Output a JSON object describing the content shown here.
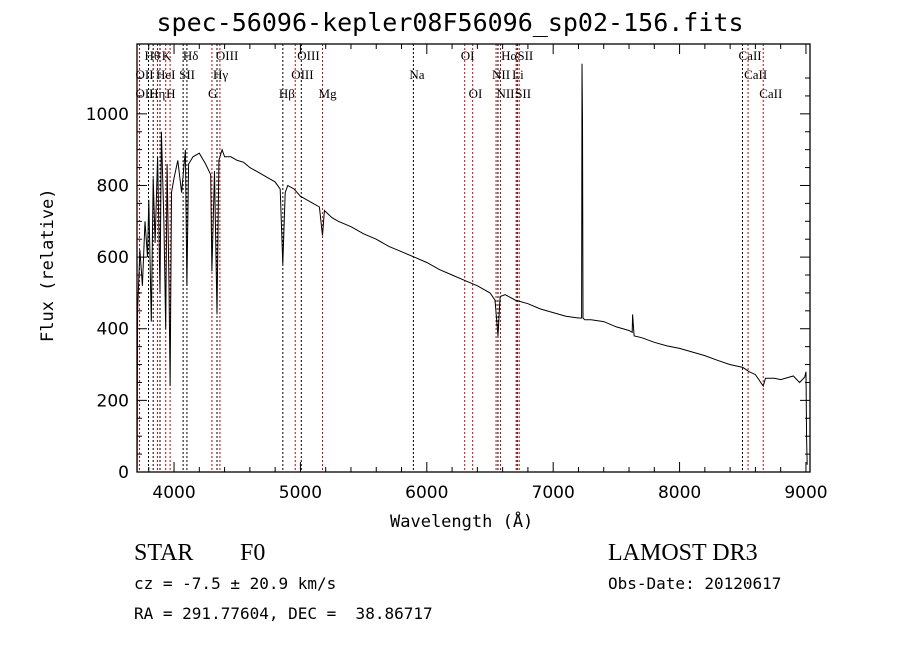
{
  "chart_data": {
    "type": "line",
    "title": "spec-56096-kepler08F56096_sp02-156.fits",
    "xlabel": "Wavelength (Å)",
    "ylabel": "Flux (relative)",
    "xlim": [
      3707,
      9032
    ],
    "ylim": [
      0,
      1195
    ],
    "xticks": [
      4000,
      5000,
      6000,
      7000,
      8000,
      9000
    ],
    "xtick_labels": [
      "4000",
      "5000",
      "6000",
      "7000",
      "8000",
      "9000"
    ],
    "yticks": [
      0,
      200,
      400,
      600,
      800,
      1000
    ],
    "ytick_labels": [
      "0",
      "200",
      "400",
      "600",
      "800",
      "1000"
    ],
    "grid": false,
    "series": [
      {
        "name": "spectrum",
        "color": "#000000",
        "x": [
          3708,
          3712,
          3730,
          3750,
          3770,
          3790,
          3800,
          3820,
          3835,
          3850,
          3870,
          3889,
          3900,
          3920,
          3934,
          3945,
          3960,
          3969,
          3980,
          4000,
          4030,
          4060,
          4090,
          4102,
          4115,
          4150,
          4200,
          4250,
          4290,
          4300,
          4320,
          4340,
          4355,
          4380,
          4400,
          4450,
          4500,
          4550,
          4600,
          4650,
          4700,
          4750,
          4800,
          4840,
          4861,
          4880,
          4900,
          4950,
          5000,
          5050,
          5100,
          5150,
          5175,
          5190,
          5250,
          5300,
          5400,
          5500,
          5600,
          5700,
          5800,
          5900,
          6000,
          6100,
          6200,
          6300,
          6400,
          6500,
          6540,
          6563,
          6580,
          6620,
          6700,
          6800,
          6900,
          7000,
          7100,
          7200,
          7225,
          7228,
          7232,
          7236,
          7250,
          7300,
          7400,
          7500,
          7600,
          7625,
          7628,
          7640,
          7700,
          7800,
          7900,
          8000,
          8100,
          8200,
          8300,
          8400,
          8500,
          8550,
          8600,
          8662,
          8680,
          8750,
          8800,
          8900,
          8950,
          8990,
          9000,
          9005,
          9010
        ],
        "y": [
          0,
          450,
          620,
          520,
          700,
          600,
          760,
          420,
          820,
          640,
          880,
          500,
          950,
          700,
          400,
          860,
          520,
          240,
          780,
          820,
          870,
          780,
          900,
          520,
          860,
          880,
          890,
          860,
          830,
          560,
          840,
          440,
          870,
          900,
          880,
          880,
          870,
          865,
          850,
          840,
          830,
          820,
          810,
          790,
          580,
          780,
          800,
          790,
          770,
          760,
          750,
          740,
          660,
          730,
          710,
          700,
          685,
          665,
          650,
          630,
          615,
          600,
          585,
          565,
          550,
          535,
          520,
          500,
          480,
          380,
          490,
          495,
          480,
          470,
          455,
          445,
          435,
          430,
          430,
          1140,
          980,
          430,
          425,
          425,
          420,
          405,
          395,
          390,
          440,
          380,
          375,
          362,
          352,
          345,
          335,
          325,
          312,
          300,
          292,
          280,
          272,
          240,
          262,
          262,
          258,
          268,
          250,
          265,
          280,
          90,
          20
        ]
      },
      {
        "name": "spectral-lines",
        "lines": [
          {
            "w": 3727,
            "color": "#cc0000"
          },
          {
            "w": 3798,
            "color": "#000000"
          },
          {
            "w": 3835,
            "color": "#000000"
          },
          {
            "w": 3869,
            "color": "#cc0000"
          },
          {
            "w": 3889,
            "color": "#000000"
          },
          {
            "w": 3934,
            "color": "#cc0000"
          },
          {
            "w": 3969,
            "color": "#cc0000"
          },
          {
            "w": 4072,
            "color": "#000000"
          },
          {
            "w": 4102,
            "color": "#000000"
          },
          {
            "w": 4300,
            "color": "#cc0000"
          },
          {
            "w": 4340,
            "color": "#000000"
          },
          {
            "w": 4363,
            "color": "#cc0000"
          },
          {
            "w": 4861,
            "color": "#000000"
          },
          {
            "w": 4959,
            "color": "#cc0000"
          },
          {
            "w": 5007,
            "color": "#000000"
          },
          {
            "w": 5175,
            "color": "#cc0000"
          },
          {
            "w": 5894,
            "color": "#000000"
          },
          {
            "w": 6300,
            "color": "#cc0000"
          },
          {
            "w": 6363,
            "color": "#cc0000"
          },
          {
            "w": 6548,
            "color": "#cc0000"
          },
          {
            "w": 6563,
            "color": "#000000"
          },
          {
            "w": 6583,
            "color": "#cc0000"
          },
          {
            "w": 6707,
            "color": "#cc0000"
          },
          {
            "w": 6716,
            "color": "#000000"
          },
          {
            "w": 6731,
            "color": "#cc0000"
          },
          {
            "w": 8498,
            "color": "#000000"
          },
          {
            "w": 8542,
            "color": "#cc0000"
          },
          {
            "w": 8662,
            "color": "#cc0000"
          }
        ]
      }
    ],
    "line_labels": [
      {
        "text": "Hθ",
        "w": 3798,
        "row": 0
      },
      {
        "text": "K",
        "w": 3934,
        "row": 0
      },
      {
        "text": "Hδ",
        "w": 4102,
        "row": 0
      },
      {
        "text": "OIII",
        "w": 4363,
        "row": 0
      },
      {
        "text": "OIII",
        "w": 5007,
        "row": 0
      },
      {
        "text": "OI",
        "w": 6300,
        "row": 0
      },
      {
        "text": "HαSII",
        "w": 6620,
        "row": 0
      },
      {
        "text": "CaII",
        "w": 8498,
        "row": 0
      },
      {
        "text": "OII",
        "w": 3727,
        "row": 1
      },
      {
        "text": "HeI",
        "w": 3889,
        "row": 1
      },
      {
        "text": "SII",
        "w": 4072,
        "row": 1
      },
      {
        "text": "Hγ",
        "w": 4340,
        "row": 1
      },
      {
        "text": "OIII",
        "w": 4959,
        "row": 1
      },
      {
        "text": "Na",
        "w": 5894,
        "row": 1
      },
      {
        "text": "NII",
        "w": 6548,
        "row": 1
      },
      {
        "text": "Li",
        "w": 6707,
        "row": 1
      },
      {
        "text": "CaII",
        "w": 8542,
        "row": 1
      },
      {
        "text": "OII",
        "w": 3727,
        "row": 2
      },
      {
        "text": "Hη",
        "w": 3835,
        "row": 2
      },
      {
        "text": "H",
        "w": 3969,
        "row": 2
      },
      {
        "text": "G",
        "w": 4300,
        "row": 2
      },
      {
        "text": "Hβ",
        "w": 4861,
        "row": 2
      },
      {
        "text": "Mg",
        "w": 5175,
        "row": 2
      },
      {
        "text": "OI",
        "w": 6363,
        "row": 2
      },
      {
        "text": "NII",
        "w": 6583,
        "row": 2
      },
      {
        "text": "SII",
        "w": 6731,
        "row": 2
      },
      {
        "text": "CaII",
        "w": 8662,
        "row": 2
      }
    ]
  },
  "info": {
    "object_class": "STAR",
    "subclass": "F0",
    "cz": "cz = -7.5 ± 20.9 km/s",
    "coords": "RA = 291.77604, DEC =  38.86717",
    "survey": "LAMOST DR3",
    "obs_date": "Obs-Date: 20120617"
  }
}
